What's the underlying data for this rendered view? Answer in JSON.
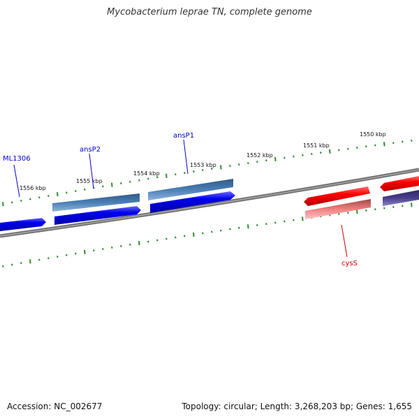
{
  "title": "Mycobacterium leprae TN, complete genome",
  "footer": {
    "accession": "Accession: NC_002677",
    "summary": "Topology: circular; Length: 3,268,203 bp; Genes: 1,655"
  },
  "colors": {
    "backbone": "#7a7a7a",
    "ticks": "#2e8b2e",
    "gene_blue": "#0000ee",
    "gene_steel": "#4a7fb5",
    "gene_red": "#ff0000",
    "gene_pink": "#f08080",
    "gene_navy": "#483d8b",
    "label_blue": "#0000cc",
    "label_red": "#cc0000"
  },
  "kbp_labels": [
    "1556 kbp",
    "1555 kbp",
    "1554 kbp",
    "1553 kbp",
    "1552 kbp",
    "1551 kbp",
    "1550 kbp"
  ],
  "gene_labels": [
    "ML1306",
    "ansP2",
    "ansP1",
    "cysS"
  ]
}
